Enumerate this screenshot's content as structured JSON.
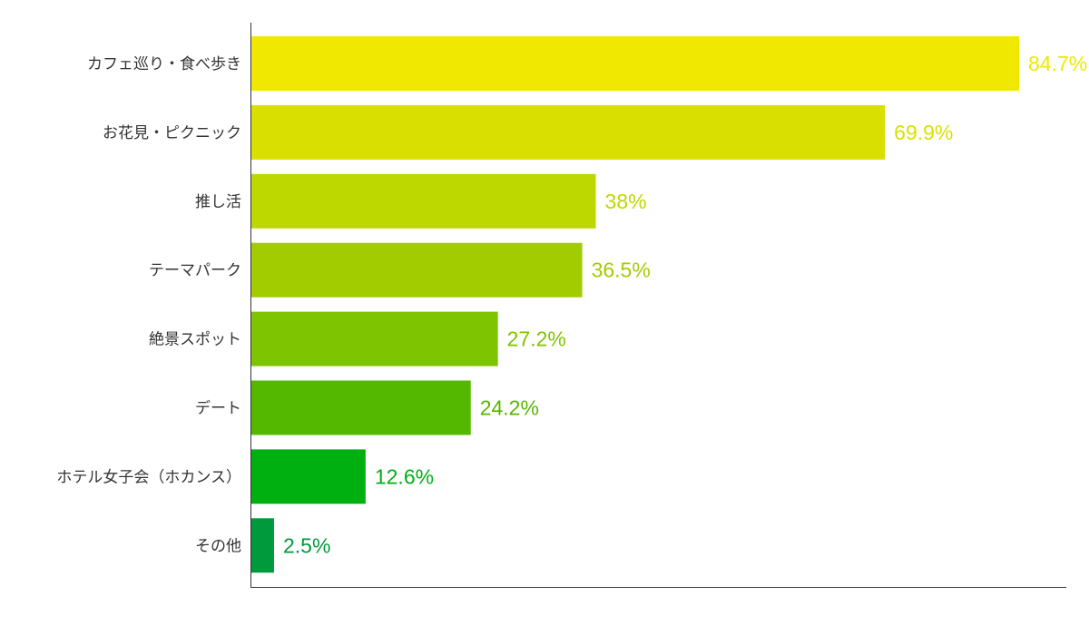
{
  "chart_data": {
    "type": "bar",
    "orientation": "horizontal",
    "title": "",
    "xlabel": "",
    "ylabel": "",
    "xlim": [
      0,
      84.7
    ],
    "grid": false,
    "legend": "none",
    "unit": "%",
    "categories": [
      "カフェ巡り・食べ歩き",
      "お花見・ピクニック",
      "推し活",
      "テーマパーク",
      "絶景スポット",
      "デート",
      "ホテル女子会（ホカンス）",
      "その他"
    ],
    "values": [
      84.7,
      69.9,
      38,
      36.5,
      27.2,
      24.2,
      12.6,
      2.5
    ],
    "value_labels": [
      "84.7%",
      "69.9%",
      "38%",
      "36.5%",
      "27.2%",
      "24.2%",
      "12.6%",
      "2.5%"
    ],
    "colors": [
      "#f0e800",
      "#d9e000",
      "#bcd800",
      "#a2cc00",
      "#7ec400",
      "#55b800",
      "#00b010",
      "#009a3c"
    ],
    "axis_color": "#333333"
  }
}
